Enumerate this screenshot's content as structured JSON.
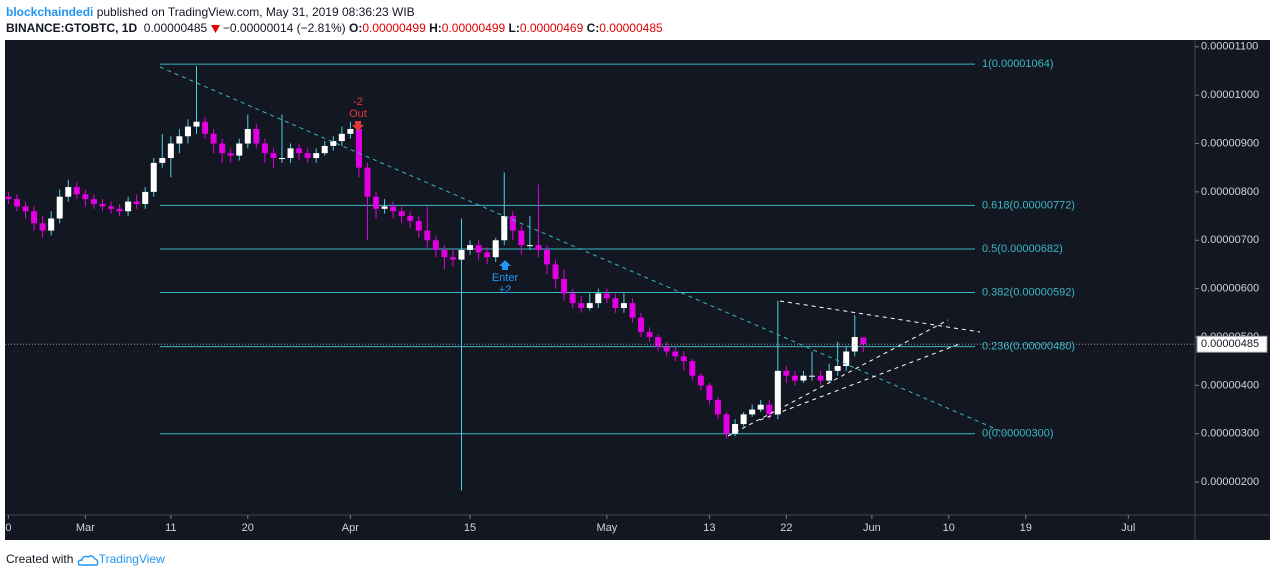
{
  "header": {
    "author": "blockchaindedi",
    "published": "published on TradingView.com, May 31, 2019 08:36:23 WIB",
    "symbol": "BINANCE:GTOBTC, 1D",
    "last": "0.00000485",
    "change": "−0.00000014 (−2.81%)",
    "ohlc": [
      {
        "label": "O:",
        "value": "0.00000499"
      },
      {
        "label": "H:",
        "value": "0.00000499"
      },
      {
        "label": "L:",
        "value": "0.00000469"
      },
      {
        "label": "C:",
        "value": "0.00000485"
      }
    ]
  },
  "footer": {
    "created_with": "Created with",
    "brand": "TradingView"
  },
  "chart_data": {
    "type": "candlestick",
    "up_color": "#ffffff",
    "down_color": "#e100e1",
    "up_wick_color": "#4dd0e1",
    "down_wick_color": "#e100e1",
    "x": [
      -9,
      -8,
      -7,
      -6,
      -5,
      -4,
      -3,
      -2,
      -1,
      0,
      1,
      2,
      3,
      4,
      5,
      6,
      7,
      8,
      9,
      10,
      11,
      12,
      13,
      14,
      15,
      16,
      17,
      18,
      19,
      20,
      21,
      22,
      23,
      24,
      25,
      26,
      27,
      28,
      29,
      30,
      31,
      32,
      33,
      34,
      35,
      36,
      37,
      38,
      39,
      40,
      41,
      42,
      43,
      44,
      45,
      46,
      47,
      48,
      49,
      50,
      51,
      52,
      53,
      54,
      55,
      56,
      57,
      58,
      59,
      60,
      61,
      62,
      63,
      64,
      65,
      66,
      67,
      68,
      69,
      70,
      71,
      72,
      73,
      74,
      75,
      76,
      77,
      78,
      79,
      80,
      81,
      82,
      83,
      84,
      85,
      86,
      87,
      88,
      89,
      90,
      91
    ],
    "open": [
      7.9e-06,
      7.85e-06,
      7.7e-06,
      7.6e-06,
      7.35e-06,
      7.2e-06,
      7.45e-06,
      7.9e-06,
      8.1e-06,
      7.95e-06,
      7.85e-06,
      7.75e-06,
      7.7e-06,
      7.65e-06,
      7.6e-06,
      7.8e-06,
      7.75e-06,
      8e-06,
      8.6e-06,
      8.7e-06,
      9e-06,
      9.15e-06,
      9.35e-06,
      9.45e-06,
      9.2e-06,
      9e-06,
      8.8e-06,
      8.75e-06,
      9e-06,
      9.3e-06,
      9e-06,
      8.8e-06,
      8.7e-06,
      8.7e-06,
      8.9e-06,
      8.8e-06,
      8.7e-06,
      8.8e-06,
      8.95e-06,
      9.05e-06,
      9.2e-06,
      9.3e-06,
      8.5e-06,
      7.9e-06,
      7.65e-06,
      7.7e-06,
      7.6e-06,
      7.5e-06,
      7.4e-06,
      7.2e-06,
      7e-06,
      6.8e-06,
      6.65e-06,
      6.6e-06,
      6.8e-06,
      6.9e-06,
      6.75e-06,
      6.65e-06,
      7e-06,
      7.5e-06,
      7.2e-06,
      6.9e-06,
      6.9e-06,
      6.8e-06,
      6.5e-06,
      6.2e-06,
      5.9e-06,
      5.7e-06,
      5.6e-06,
      5.7e-06,
      5.9e-06,
      5.8e-06,
      5.6e-06,
      5.7e-06,
      5.4e-06,
      5.1e-06,
      5e-06,
      4.8e-06,
      4.7e-06,
      4.6e-06,
      4.5e-06,
      4.2e-06,
      4e-06,
      3.7e-06,
      3.4e-06,
      3e-06,
      3.2e-06,
      3.4e-06,
      3.5e-06,
      3.6e-06,
      3.4e-06,
      4.3e-06,
      4.2e-06,
      4.1e-06,
      4.2e-06,
      4.2e-06,
      4.1e-06,
      4.3e-06,
      4.4e-06,
      4.7e-06,
      4.99e-06
    ],
    "high": [
      8e-06,
      7.95e-06,
      7.8e-06,
      7.7e-06,
      7.5e-06,
      7.6e-06,
      8.05e-06,
      8.25e-06,
      8.2e-06,
      8.05e-06,
      7.95e-06,
      7.85e-06,
      7.8e-06,
      7.75e-06,
      7.9e-06,
      7.95e-06,
      8.1e-06,
      8.7e-06,
      9.2e-06,
      9.15e-06,
      9.3e-06,
      9.5e-06,
      1.06e-05,
      9.55e-06,
      9.3e-06,
      9.1e-06,
      8.9e-06,
      9.1e-06,
      9.6e-06,
      9.4e-06,
      9.1e-06,
      8.9e-06,
      9.6e-06,
      9e-06,
      9e-06,
      8.9e-06,
      8.9e-06,
      9.05e-06,
      9.15e-06,
      9.35e-06,
      9.45e-06,
      9.4e-06,
      8.6e-06,
      8e-06,
      7.85e-06,
      7.8e-06,
      7.7e-06,
      7.6e-06,
      7.5e-06,
      7.7e-06,
      7.1e-06,
      6.9e-06,
      6.8e-06,
      7.45e-06,
      7e-06,
      7e-06,
      6.85e-06,
      7.05e-06,
      8.4e-06,
      7.6e-06,
      7.3e-06,
      7.5e-06,
      8.15e-06,
      6.9e-06,
      6.6e-06,
      6.4e-06,
      6e-06,
      5.85e-06,
      5.9e-06,
      6e-06,
      6e-06,
      5.9e-06,
      5.9e-06,
      5.8e-06,
      5.5e-06,
      5.2e-06,
      5.05e-06,
      4.9e-06,
      4.8e-06,
      4.7e-06,
      4.55e-06,
      4.25e-06,
      4.05e-06,
      3.75e-06,
      3.45e-06,
      3.3e-06,
      3.45e-06,
      3.6e-06,
      3.7e-06,
      3.7e-06,
      5.75e-06,
      4.4e-06,
      4.3e-06,
      4.3e-06,
      4.7e-06,
      4.3e-06,
      4.45e-06,
      4.9e-06,
      4.8e-06,
      5.45e-06,
      4.99e-06
    ],
    "low": [
      7.75e-06,
      7.6e-06,
      7.45e-06,
      7.2e-06,
      7.05e-06,
      7.1e-06,
      7.35e-06,
      7.8e-06,
      7.85e-06,
      7.7e-06,
      7.65e-06,
      7.6e-06,
      7.55e-06,
      7.5e-06,
      7.5e-06,
      7.65e-06,
      7.65e-06,
      7.9e-06,
      8.5e-06,
      8.3e-06,
      8.8e-06,
      9e-06,
      9.2e-06,
      9.1e-06,
      8.8e-06,
      8.6e-06,
      8.6e-06,
      8.65e-06,
      8.9e-06,
      8.9e-06,
      8.6e-06,
      8.5e-06,
      8.6e-06,
      8.6e-06,
      8.65e-06,
      8.6e-06,
      8.6e-06,
      8.75e-06,
      8.85e-06,
      8.95e-06,
      9.1e-06,
      8.3e-06,
      7e-06,
      7.45e-06,
      7.55e-06,
      7.45e-06,
      7.35e-06,
      7.25e-06,
      7.05e-06,
      6.85e-06,
      6.65e-06,
      6.4e-06,
      6.45e-06,
      1.83e-06,
      6.7e-06,
      6.6e-06,
      6.5e-06,
      6.55e-06,
      6.9e-06,
      7e-06,
      6.7e-06,
      6.8e-06,
      6.65e-06,
      6.3e-06,
      6e-06,
      5.75e-06,
      5.6e-06,
      5.5e-06,
      5.55e-06,
      5.6e-06,
      5.7e-06,
      5.5e-06,
      5.5e-06,
      5.3e-06,
      5e-06,
      4.9e-06,
      4.7e-06,
      4.6e-06,
      4.5e-06,
      4.3e-06,
      4.1e-06,
      3.9e-06,
      3.6e-06,
      3.3e-06,
      2.9e-06,
      2.95e-06,
      3.15e-06,
      3.35e-06,
      3.45e-06,
      3.3e-06,
      3.3e-06,
      4.05e-06,
      4e-06,
      4.05e-06,
      4.1e-06,
      4e-06,
      4.05e-06,
      4.2e-06,
      4.3e-06,
      4.6e-06,
      4.69e-06
    ],
    "close": [
      7.85e-06,
      7.7e-06,
      7.6e-06,
      7.35e-06,
      7.2e-06,
      7.45e-06,
      7.9e-06,
      8.1e-06,
      7.95e-06,
      7.85e-06,
      7.75e-06,
      7.7e-06,
      7.65e-06,
      7.6e-06,
      7.8e-06,
      7.75e-06,
      8e-06,
      8.6e-06,
      8.7e-06,
      9e-06,
      9.15e-06,
      9.35e-06,
      9.45e-06,
      9.2e-06,
      9e-06,
      8.8e-06,
      8.75e-06,
      9e-06,
      9.3e-06,
      9e-06,
      8.8e-06,
      8.7e-06,
      8.7e-06,
      8.9e-06,
      8.8e-06,
      8.7e-06,
      8.8e-06,
      8.95e-06,
      9.05e-06,
      9.2e-06,
      9.3e-06,
      8.5e-06,
      7.9e-06,
      7.65e-06,
      7.7e-06,
      7.6e-06,
      7.5e-06,
      7.4e-06,
      7.2e-06,
      7e-06,
      6.8e-06,
      6.65e-06,
      6.6e-06,
      6.8e-06,
      6.9e-06,
      6.75e-06,
      6.65e-06,
      7e-06,
      7.5e-06,
      7.2e-06,
      6.9e-06,
      6.9e-06,
      6.8e-06,
      6.5e-06,
      6.2e-06,
      5.9e-06,
      5.7e-06,
      5.6e-06,
      5.7e-06,
      5.9e-06,
      5.8e-06,
      5.6e-06,
      5.7e-06,
      5.4e-06,
      5.1e-06,
      5e-06,
      4.8e-06,
      4.7e-06,
      4.6e-06,
      4.5e-06,
      4.2e-06,
      4e-06,
      3.7e-06,
      3.4e-06,
      3e-06,
      3.2e-06,
      3.4e-06,
      3.5e-06,
      3.6e-06,
      3.4e-06,
      4.3e-06,
      4.2e-06,
      4.1e-06,
      4.2e-06,
      4.2e-06,
      4.1e-06,
      4.3e-06,
      4.4e-06,
      4.7e-06,
      5e-06,
      4.85e-06
    ],
    "xlim": [
      -9.4,
      129.8
    ],
    "xticks": [
      {
        "value": -9,
        "label": "0"
      },
      {
        "value": 0,
        "label": "Mar"
      },
      {
        "value": 10,
        "label": "11"
      },
      {
        "value": 19,
        "label": "20"
      },
      {
        "value": 31,
        "label": "Apr"
      },
      {
        "value": 45,
        "label": "15"
      },
      {
        "value": 61,
        "label": "May"
      },
      {
        "value": 73,
        "label": "13"
      },
      {
        "value": 82,
        "label": "22"
      },
      {
        "value": 92,
        "label": "Jun"
      },
      {
        "value": 101,
        "label": "10"
      },
      {
        "value": 110,
        "label": "19"
      },
      {
        "value": 122,
        "label": "Jul"
      }
    ],
    "ylim": [
      1.32e-06,
      1.114e-05
    ],
    "yticks": [
      {
        "value": 1.1e-05,
        "label": "0.00001100"
      },
      {
        "value": 1e-05,
        "label": "0.00001000"
      },
      {
        "value": 9e-06,
        "label": "0.00000900"
      },
      {
        "value": 8e-06,
        "label": "0.00000800"
      },
      {
        "value": 7e-06,
        "label": "0.00000700"
      },
      {
        "value": 6e-06,
        "label": "0.00000600"
      },
      {
        "value": 5e-06,
        "label": "0.00000500"
      },
      {
        "value": 4e-06,
        "label": "0.00000400"
      },
      {
        "value": 3e-06,
        "label": "0.00000300"
      },
      {
        "value": 2e-06,
        "label": "0.00000200"
      }
    ],
    "fib_color": "#3ab8c4",
    "fib_levels": [
      {
        "value": 1.064e-05,
        "label": "1(0.00001064)"
      },
      {
        "value": 7.72e-06,
        "label": "0.618(0.00000772)"
      },
      {
        "value": 6.82e-06,
        "label": "0.5(0.00000682)"
      },
      {
        "value": 5.92e-06,
        "label": "0.382(0.00000592)"
      },
      {
        "value": 4.8e-06,
        "label": "0.236(0.00000480)"
      },
      {
        "value": 3e-06,
        "label": "0(0.00000300)"
      }
    ],
    "last_price": {
      "value": 4.85e-06,
      "label": "0.00000485"
    },
    "annotations": [
      "-2",
      "Out",
      "Enter",
      "+2"
    ]
  }
}
